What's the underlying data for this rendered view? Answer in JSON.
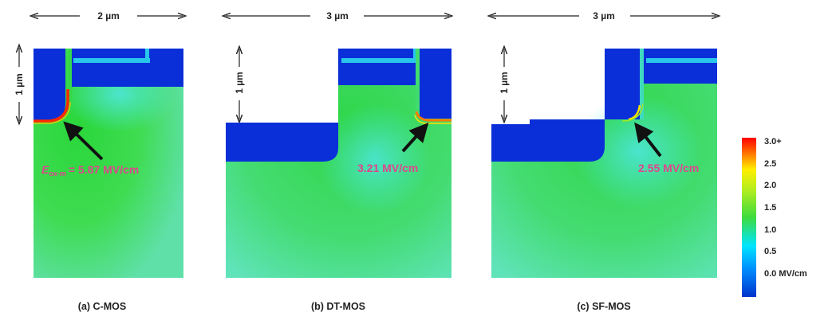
{
  "panels": [
    {
      "caption": "(a) C-MOS",
      "width_label": "2 µm",
      "height_label": "1 µm",
      "annotation_prefix": "E",
      "annotation_sub": "ox-m",
      "annotation": "= 5.87 MV/cm"
    },
    {
      "caption": "(b) DT-MOS",
      "width_label": "3 µm",
      "height_label": "1 µm",
      "annotation": "3.21 MV/cm"
    },
    {
      "caption": "(c) SF-MOS",
      "width_label": "3 µm",
      "height_label": "1 µm",
      "annotation": "2.55 MV/cm"
    }
  ],
  "colorbar": {
    "labels": [
      "3.0+",
      "2.5",
      "2.0",
      "1.5",
      "1.0",
      "0.5",
      "0.0 MV/cm"
    ],
    "colors": [
      "#0033cc",
      "#00e5ff",
      "#3ddc3d",
      "#ffee00",
      "#ff0000"
    ]
  }
}
